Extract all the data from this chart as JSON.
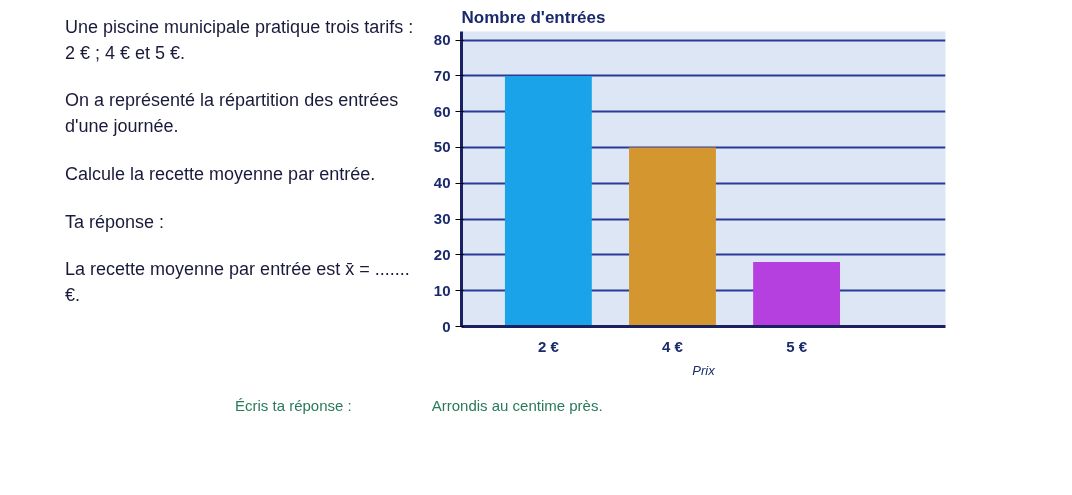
{
  "chart_data": {
    "type": "bar",
    "title": "Nombre d'entrées",
    "xlabel": "Prix",
    "categories": [
      "2 €",
      "4 €",
      "5 €"
    ],
    "values": [
      70,
      50,
      18
    ],
    "colors": [
      "#1aa3e8",
      "#d4962f",
      "#b63fe0"
    ],
    "ylim": [
      0,
      80
    ],
    "yticks": [
      0,
      10,
      20,
      30,
      40,
      50,
      60,
      70,
      80
    ],
    "grid": "y",
    "annotations": [
      "Une piscine municipale pratique trois tarifs : 2 € ; 4 € et 5 €.",
      "On a représenté la répartition des entrées d'une journée.",
      "Calcule la recette moyenne par entrée.",
      "Ta réponse :",
      "La recette moyenne par entrée est x̄ = ....... €.",
      "Écris ta réponse :",
      "Arrondis au centime près."
    ]
  }
}
